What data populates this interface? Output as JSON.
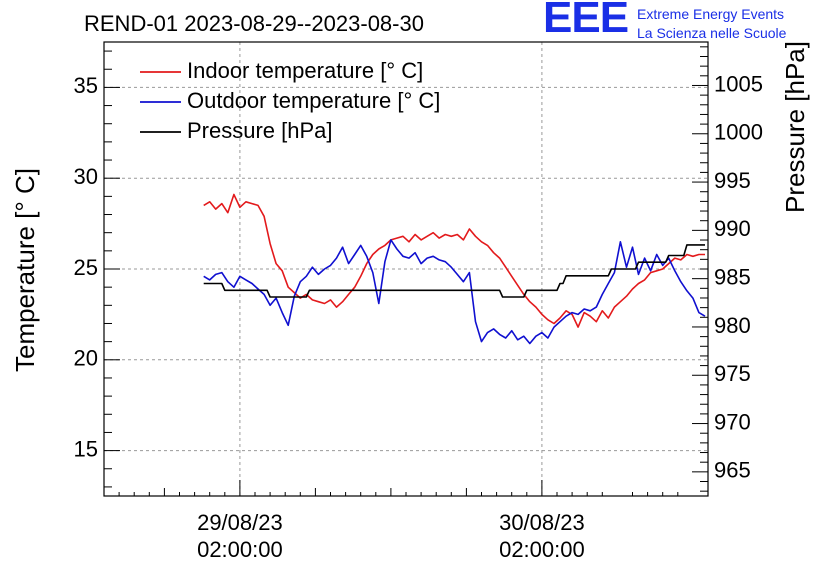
{
  "title": "REND-01 2023-08-29--2023-08-30",
  "logo": {
    "text": "EEE",
    "line1": "Extreme Energy Events",
    "line2": "La Scienza nelle Scuole",
    "color": "#1a2fe6"
  },
  "chart_data": {
    "type": "line",
    "title": "REND-01 2023-08-29--2023-08-30",
    "xlabel": "",
    "ylabel": "Temperature [° C]",
    "y2label": "Pressure [hPa]",
    "ylim": [
      12.5,
      37.5
    ],
    "y2lim": [
      962.5,
      1009.5
    ],
    "xlim": [
      -0.45,
      1.55
    ],
    "grid": true,
    "legend_position": "top-left",
    "x_unit": "days since 29/08/23 02:00:00",
    "y_ticks": [
      "15",
      "20",
      "25",
      "30",
      "35"
    ],
    "y2_ticks": [
      "965",
      "970",
      "975",
      "980",
      "985",
      "990",
      "995",
      "1000",
      "1005"
    ],
    "x_ticks": [
      {
        "x": 0,
        "date": "29/08/23",
        "time": "02:00:00"
      },
      {
        "x": 1,
        "date": "30/08/23",
        "time": "02:00:00"
      }
    ],
    "series": [
      {
        "name": "Indoor temperature [° C]",
        "axis": "left",
        "color": "#e31a1c",
        "x": [
          -0.12,
          -0.1,
          -0.08,
          -0.06,
          -0.04,
          -0.02,
          0.0,
          0.02,
          0.04,
          0.06,
          0.08,
          0.1,
          0.12,
          0.14,
          0.16,
          0.18,
          0.2,
          0.22,
          0.24,
          0.26,
          0.28,
          0.3,
          0.32,
          0.34,
          0.36,
          0.38,
          0.4,
          0.42,
          0.44,
          0.46,
          0.48,
          0.5,
          0.52,
          0.54,
          0.56,
          0.58,
          0.6,
          0.62,
          0.64,
          0.66,
          0.68,
          0.7,
          0.72,
          0.74,
          0.76,
          0.78,
          0.8,
          0.82,
          0.84,
          0.86,
          0.88,
          0.9,
          0.92,
          0.94,
          0.96,
          0.98,
          1.0,
          1.02,
          1.04,
          1.06,
          1.08,
          1.1,
          1.12,
          1.14,
          1.16,
          1.18,
          1.2,
          1.22,
          1.24,
          1.26,
          1.28,
          1.3,
          1.32,
          1.34,
          1.36,
          1.38,
          1.4,
          1.42,
          1.44,
          1.46,
          1.48,
          1.5,
          1.52,
          1.54
        ],
        "values": [
          28.5,
          28.7,
          28.3,
          28.6,
          28.1,
          29.1,
          28.4,
          28.7,
          28.6,
          28.5,
          27.9,
          26.4,
          25.3,
          24.9,
          24.0,
          23.7,
          23.4,
          23.6,
          23.3,
          23.2,
          23.1,
          23.3,
          22.9,
          23.2,
          23.6,
          24.0,
          24.6,
          25.3,
          25.8,
          26.1,
          26.3,
          26.6,
          26.7,
          26.8,
          26.5,
          26.9,
          26.6,
          26.8,
          27.0,
          26.7,
          26.9,
          26.8,
          26.9,
          26.6,
          27.2,
          26.8,
          26.5,
          26.3,
          25.9,
          25.6,
          25.1,
          24.6,
          24.1,
          23.6,
          23.2,
          22.9,
          22.5,
          22.2,
          22.0,
          22.3,
          22.7,
          22.5,
          21.8,
          22.6,
          22.4,
          22.1,
          22.7,
          22.3,
          22.9,
          23.2,
          23.5,
          23.9,
          24.2,
          24.4,
          24.8,
          24.9,
          25.0,
          25.3,
          25.6,
          25.5,
          25.8,
          25.7,
          25.8,
          25.8
        ]
      },
      {
        "name": "Outdoor temperature [° C]",
        "axis": "left",
        "color": "#1010d0",
        "x": [
          -0.12,
          -0.1,
          -0.08,
          -0.06,
          -0.04,
          -0.02,
          0.0,
          0.02,
          0.04,
          0.06,
          0.08,
          0.1,
          0.12,
          0.14,
          0.16,
          0.18,
          0.2,
          0.22,
          0.24,
          0.26,
          0.28,
          0.3,
          0.32,
          0.34,
          0.36,
          0.38,
          0.4,
          0.42,
          0.44,
          0.46,
          0.48,
          0.5,
          0.52,
          0.54,
          0.56,
          0.58,
          0.6,
          0.62,
          0.64,
          0.66,
          0.68,
          0.7,
          0.72,
          0.74,
          0.76,
          0.78,
          0.8,
          0.82,
          0.84,
          0.86,
          0.88,
          0.9,
          0.92,
          0.94,
          0.96,
          0.98,
          1.0,
          1.02,
          1.04,
          1.06,
          1.08,
          1.1,
          1.12,
          1.14,
          1.16,
          1.18,
          1.2,
          1.22,
          1.24,
          1.26,
          1.28,
          1.3,
          1.32,
          1.34,
          1.36,
          1.38,
          1.4,
          1.42,
          1.44,
          1.46,
          1.48,
          1.5,
          1.52,
          1.54
        ],
        "values": [
          24.6,
          24.4,
          24.7,
          24.8,
          24.3,
          24.0,
          24.6,
          24.4,
          24.2,
          23.9,
          23.6,
          23.0,
          23.4,
          22.6,
          21.9,
          23.5,
          24.3,
          24.6,
          25.1,
          24.7,
          25.0,
          25.2,
          25.6,
          26.2,
          25.3,
          25.8,
          26.3,
          25.7,
          24.8,
          23.1,
          25.4,
          26.6,
          26.1,
          25.7,
          25.6,
          25.9,
          25.3,
          25.6,
          25.7,
          25.5,
          25.4,
          25.1,
          24.7,
          24.3,
          24.8,
          22.1,
          21.0,
          21.5,
          21.7,
          21.4,
          21.2,
          21.6,
          21.1,
          21.3,
          20.9,
          21.3,
          21.5,
          21.2,
          21.8,
          22.1,
          22.4,
          22.6,
          22.5,
          22.8,
          22.7,
          22.9,
          23.6,
          24.2,
          24.8,
          26.5,
          25.1,
          26.2,
          24.7,
          25.6,
          24.9,
          25.8,
          25.2,
          25.6,
          24.9,
          24.3,
          23.8,
          23.4,
          22.6,
          22.4
        ]
      },
      {
        "name": "Pressure [hPa]",
        "axis": "right",
        "color": "#000000",
        "step": true,
        "x": [
          -0.12,
          -0.06,
          -0.05,
          0.09,
          0.1,
          0.22,
          0.23,
          0.86,
          0.87,
          0.94,
          0.95,
          1.05,
          1.06,
          1.07,
          1.08,
          1.22,
          1.23,
          1.31,
          1.32,
          1.41,
          1.42,
          1.47,
          1.48,
          1.54
        ],
        "values": [
          984.5,
          984.5,
          983.8,
          983.8,
          983.1,
          983.1,
          983.8,
          983.8,
          983.1,
          983.1,
          983.8,
          983.8,
          984.5,
          984.5,
          985.3,
          985.3,
          986.0,
          986.0,
          986.7,
          986.7,
          987.4,
          987.4,
          988.5,
          988.5
        ]
      }
    ]
  }
}
